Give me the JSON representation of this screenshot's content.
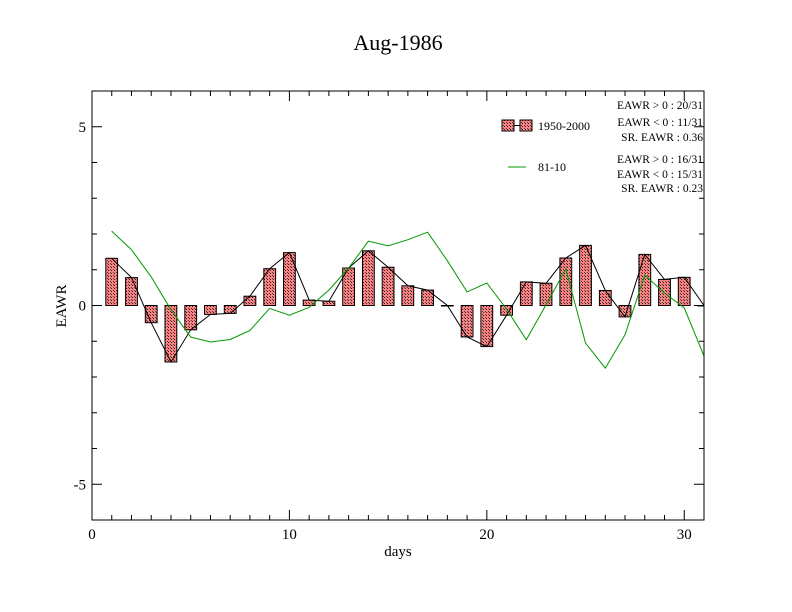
{
  "chart_data": {
    "type": "bar",
    "title": "Aug-1986",
    "xlabel": "days",
    "ylabel": "EAWR",
    "xlim": [
      0,
      31
    ],
    "ylim": [
      -6,
      6
    ],
    "x_ticks": [
      0,
      10,
      20,
      30
    ],
    "y_ticks": [
      -5,
      0,
      5
    ],
    "x": [
      1,
      2,
      3,
      4,
      5,
      6,
      7,
      8,
      9,
      10,
      11,
      12,
      13,
      14,
      15,
      16,
      17,
      18,
      19,
      20,
      21,
      22,
      23,
      24,
      25,
      26,
      27,
      28,
      29,
      30,
      31
    ],
    "series": [
      {
        "name": "1950-2000",
        "kind": "bar",
        "color": "#ff6b6b",
        "values": [
          1.32,
          0.78,
          -0.48,
          -1.58,
          -0.68,
          -0.25,
          -0.22,
          0.26,
          1.03,
          1.48,
          0.15,
          0.12,
          1.05,
          1.53,
          1.07,
          0.55,
          0.43,
          0.0,
          -0.88,
          -1.15,
          -0.27,
          0.66,
          0.62,
          1.33,
          1.68,
          0.42,
          -0.32,
          1.43,
          0.73,
          0.79,
          0.0
        ]
      },
      {
        "name": "81-10",
        "kind": "line",
        "color": "#009900",
        "values": [
          2.08,
          1.56,
          0.8,
          -0.12,
          -0.88,
          -1.02,
          -0.95,
          -0.7,
          -0.08,
          -0.27,
          -0.05,
          0.43,
          1.05,
          1.8,
          1.67,
          1.84,
          2.05,
          1.25,
          0.38,
          0.63,
          -0.1,
          -0.96,
          0.02,
          1.02,
          -1.05,
          -1.75,
          -0.82,
          0.85,
          0.35,
          -0.07,
          -1.41
        ]
      }
    ],
    "legend": {
      "placement": "top-right",
      "stats_1950": [
        "EAWR > 0 : 20/31",
        "EAWR < 0 : 11/31",
        "SR. EAWR :  0.36"
      ],
      "stats_8110": [
        "EAWR > 0 : 16/31",
        "EAWR < 0 : 15/31",
        "SR. EAWR :  0.23"
      ]
    },
    "grid": false
  }
}
